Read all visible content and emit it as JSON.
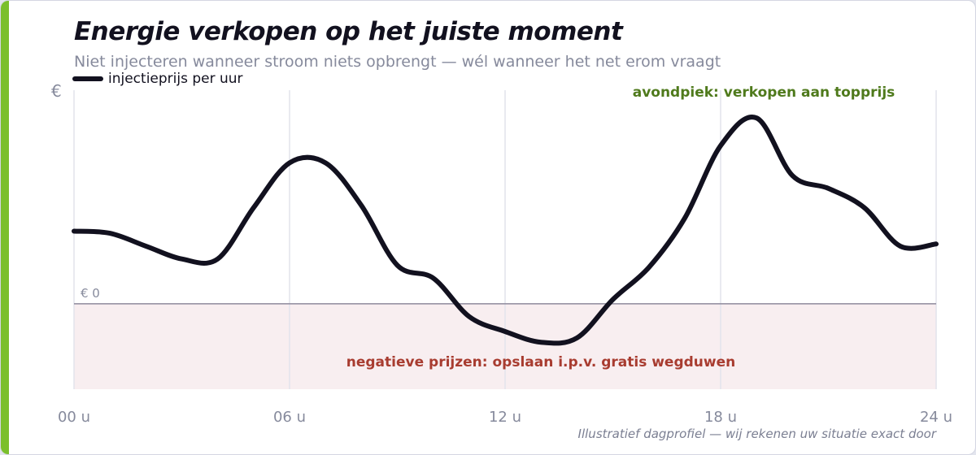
{
  "title": "Energie verkopen op het juiste moment",
  "subtitle": "Niet injecteren wanneer stroom niets opbrengt — wél wanneer het net erom vraagt",
  "footnote": "Illustratief dagprofiel — wij rekenen uw situatie exact door",
  "colors": {
    "line": "#12111f",
    "negative_zone": "#f8eef0",
    "positive_annotation": "#4f7a1c",
    "negative_annotation": "#a83c30",
    "accent": "#7bbf2c",
    "grid": "#e2e3ec",
    "axis_text": "#868a9c"
  },
  "chart_data": {
    "type": "line",
    "title": "Energie verkopen op het juiste moment",
    "subtitle": "Niet injecteren wanneer stroom niets opbrengt — wél wanneer het net erom vraagt",
    "legend": "top-left",
    "grid": true,
    "y_axis_label": "€",
    "zero_label": "€ 0",
    "xlim": [
      0,
      24
    ],
    "ylim": [
      -40,
      100
    ],
    "x_ticks": [
      {
        "value": 0,
        "label": "00 u"
      },
      {
        "value": 6,
        "label": "06 u"
      },
      {
        "value": 12,
        "label": "12 u"
      },
      {
        "value": 18,
        "label": "18 u"
      },
      {
        "value": 24,
        "label": "24 u"
      }
    ],
    "series": [
      {
        "name": "injectieprijs per uur",
        "x": [
          0,
          1,
          2,
          3,
          4,
          5,
          6,
          7,
          8,
          9,
          10,
          11,
          12,
          13,
          14,
          15,
          16,
          17,
          18,
          19,
          20,
          21,
          22,
          23,
          24
        ],
        "y": [
          34,
          33,
          27,
          21,
          21,
          45,
          66,
          66,
          46,
          18,
          12,
          -6,
          -13,
          -18,
          -16,
          2,
          17,
          40,
          74,
          87,
          60,
          54,
          45,
          27,
          28
        ]
      }
    ],
    "annotations": [
      {
        "text": "avondpiek: verkopen aan topprijs",
        "kind": "positive",
        "position": "top-right"
      },
      {
        "text": "negatieve prijzen: opslaan i.p.v. gratis wegduwen",
        "kind": "negative",
        "position": "bottom-center"
      }
    ]
  }
}
